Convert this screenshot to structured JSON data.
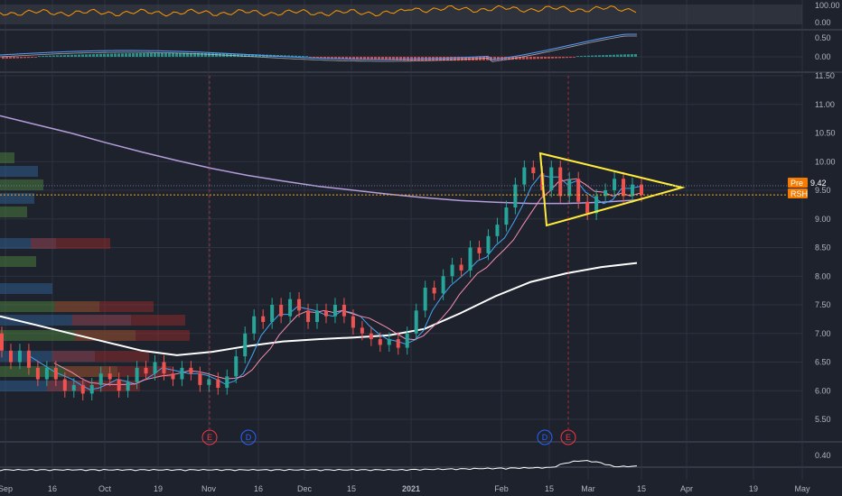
{
  "chart_data": {
    "type": "candlestick",
    "title": "",
    "x_ticks": [
      "Sep",
      "16",
      "Oct",
      "19",
      "Nov",
      "16",
      "Dec",
      "15",
      "2021",
      "Feb",
      "15",
      "Mar",
      "15",
      "Apr",
      "19",
      "May"
    ],
    "price_axis": {
      "ticks": [
        "11.50",
        "11.00",
        "10.50",
        "10.00",
        "9.50",
        "9.00",
        "8.50",
        "8.00",
        "7.50",
        "7.00",
        "6.50",
        "6.00",
        "5.50"
      ],
      "range": [
        5.3,
        11.6
      ]
    },
    "rsi_pane": {
      "ticks": [
        "100.00",
        "0.00"
      ],
      "range": [
        0,
        100
      ]
    },
    "macd_pane": {
      "ticks": [
        "0.50",
        "0.00"
      ],
      "range": [
        -0.3,
        0.7
      ]
    },
    "volume_pane": {
      "ticks": [
        "0.40"
      ]
    },
    "price_labels": [
      {
        "name": "Pre",
        "value": "9.42",
        "color": "#f57c00"
      },
      {
        "name": "RSH",
        "value": "",
        "color": "#f57c00"
      }
    ],
    "event_markers": [
      {
        "letter": "E",
        "kind": "earnings",
        "x": "Nov",
        "color": "#f23645"
      },
      {
        "letter": "D",
        "kind": "dividend",
        "x": "Nov 9",
        "color": "#2962ff"
      },
      {
        "letter": "D",
        "kind": "dividend",
        "x": "Feb 17",
        "color": "#2962ff"
      },
      {
        "letter": "E",
        "kind": "earnings",
        "x": "Feb 25",
        "color": "#f23645"
      }
    ],
    "pattern": {
      "type": "symmetrical-triangle",
      "color": "#ffeb3b"
    },
    "colors": {
      "up": "#26a69a",
      "down": "#ef5350",
      "background": "#1e222d",
      "ma_200": "#b39ddb",
      "ma_50": "#ffffff",
      "ma_20": "#f48fb1",
      "ma_10": "#42a5f5",
      "rsi": "#ff9800",
      "price_line": "#f5a623"
    },
    "moving_averages": [
      {
        "color": "#b39ddb",
        "points": [
          [
            0,
            10.8
          ],
          [
            10,
            10.65
          ],
          [
            20,
            10.5
          ],
          [
            30,
            10.33
          ],
          [
            40,
            10.17
          ],
          [
            50,
            10.02
          ],
          [
            60,
            9.88
          ],
          [
            70,
            9.76
          ],
          [
            80,
            9.66
          ],
          [
            90,
            9.57
          ],
          [
            100,
            9.5
          ],
          [
            110,
            9.43
          ],
          [
            120,
            9.37
          ],
          [
            130,
            9.32
          ],
          [
            140,
            9.29
          ],
          [
            150,
            9.27
          ],
          [
            160,
            9.27
          ],
          [
            170,
            9.29
          ],
          [
            180,
            9.33
          ]
        ]
      },
      {
        "color": "#ffffff",
        "points": [
          [
            0,
            7.3
          ],
          [
            10,
            7.15
          ],
          [
            20,
            7.0
          ],
          [
            30,
            6.85
          ],
          [
            40,
            6.7
          ],
          [
            50,
            6.62
          ],
          [
            60,
            6.68
          ],
          [
            70,
            6.78
          ],
          [
            80,
            6.86
          ],
          [
            90,
            6.9
          ],
          [
            100,
            6.93
          ],
          [
            110,
            6.97
          ],
          [
            120,
            7.08
          ],
          [
            130,
            7.35
          ],
          [
            140,
            7.65
          ],
          [
            150,
            7.9
          ],
          [
            160,
            8.05
          ],
          [
            170,
            8.16
          ],
          [
            180,
            8.23
          ]
        ]
      }
    ],
    "candles": [
      [
        0,
        7.0,
        6.7
      ],
      [
        2,
        6.7,
        6.5
      ],
      [
        4,
        6.5,
        6.7
      ],
      [
        6,
        6.7,
        6.4
      ],
      [
        8,
        6.4,
        6.2
      ],
      [
        10,
        6.2,
        6.4
      ],
      [
        12,
        6.4,
        6.2
      ],
      [
        14,
        6.2,
        6.0
      ],
      [
        16,
        6.0,
        6.1
      ],
      [
        18,
        6.1,
        5.95
      ],
      [
        20,
        5.95,
        6.1
      ],
      [
        22,
        6.1,
        6.3
      ],
      [
        24,
        6.3,
        6.2
      ],
      [
        26,
        6.2,
        6.0
      ],
      [
        28,
        6.0,
        6.15
      ],
      [
        30,
        6.15,
        6.4
      ],
      [
        32,
        6.4,
        6.3
      ],
      [
        34,
        6.3,
        6.5
      ],
      [
        36,
        6.5,
        6.3
      ],
      [
        38,
        6.3,
        6.2
      ],
      [
        40,
        6.2,
        6.4
      ],
      [
        42,
        6.4,
        6.3
      ],
      [
        44,
        6.3,
        6.1
      ],
      [
        46,
        6.1,
        6.2
      ],
      [
        48,
        6.2,
        6.05
      ],
      [
        50,
        6.05,
        6.25
      ],
      [
        52,
        6.25,
        6.6
      ],
      [
        54,
        6.6,
        7.0
      ],
      [
        56,
        7.0,
        7.3
      ],
      [
        58,
        7.3,
        7.2
      ],
      [
        60,
        7.2,
        7.5
      ],
      [
        62,
        7.5,
        7.3
      ],
      [
        64,
        7.3,
        7.6
      ],
      [
        66,
        7.6,
        7.4
      ],
      [
        68,
        7.4,
        7.2
      ],
      [
        70,
        7.2,
        7.4
      ],
      [
        72,
        7.4,
        7.3
      ],
      [
        74,
        7.3,
        7.5
      ],
      [
        76,
        7.5,
        7.3
      ],
      [
        78,
        7.3,
        7.1
      ],
      [
        80,
        7.1,
        7.0
      ],
      [
        82,
        7.0,
        6.9
      ],
      [
        84,
        6.9,
        6.8
      ],
      [
        86,
        6.8,
        6.9
      ],
      [
        88,
        6.9,
        6.75
      ],
      [
        90,
        6.75,
        7.0
      ],
      [
        92,
        7.0,
        7.4
      ],
      [
        94,
        7.4,
        7.8
      ],
      [
        96,
        7.8,
        7.7
      ],
      [
        98,
        7.7,
        8.0
      ],
      [
        100,
        8.0,
        8.2
      ],
      [
        102,
        8.2,
        8.1
      ],
      [
        104,
        8.1,
        8.5
      ],
      [
        106,
        8.5,
        8.4
      ],
      [
        108,
        8.4,
        8.7
      ],
      [
        110,
        8.7,
        8.9
      ],
      [
        112,
        8.9,
        9.2
      ],
      [
        114,
        9.2,
        9.6
      ],
      [
        116,
        9.6,
        9.9
      ],
      [
        118,
        9.9,
        9.8
      ],
      [
        120,
        9.8,
        9.5
      ],
      [
        122,
        9.5,
        9.9
      ],
      [
        124,
        9.9,
        9.4
      ],
      [
        126,
        9.4,
        9.7
      ],
      [
        128,
        9.7,
        9.3
      ],
      [
        130,
        9.3,
        9.1
      ],
      [
        132,
        9.1,
        9.4
      ],
      [
        134,
        9.4,
        9.5
      ],
      [
        136,
        9.5,
        9.7
      ],
      [
        138,
        9.7,
        9.4
      ],
      [
        140,
        9.4,
        9.6
      ],
      [
        142,
        9.6,
        9.42
      ]
    ]
  }
}
